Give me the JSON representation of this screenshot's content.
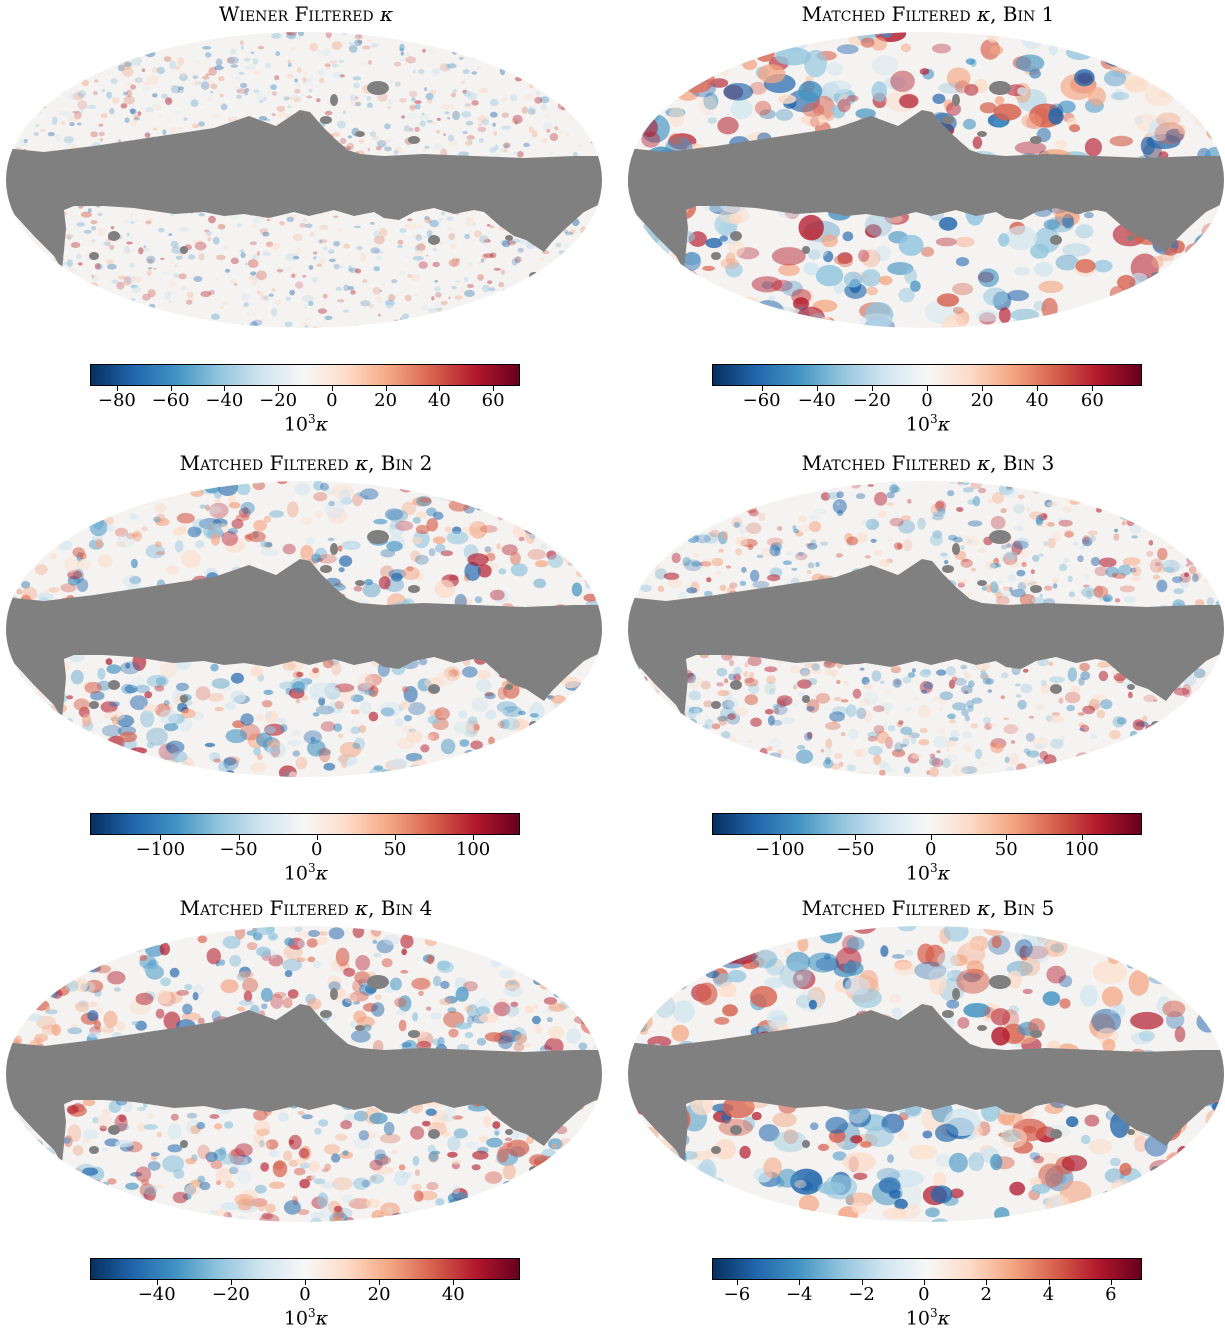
{
  "figure": {
    "background": "#ffffff",
    "mask_color": "#808080",
    "colormap": "RdBu_r",
    "colormap_stops": [
      "#053061",
      "#2166ac",
      "#4393c3",
      "#92c5de",
      "#d1e5f0",
      "#f7f7f7",
      "#fddbc7",
      "#f4a582",
      "#d6604d",
      "#b2182b",
      "#67001f"
    ],
    "projection": "mollweide",
    "panels": [
      {
        "title_prefix": "Wiener Filtered",
        "title_kappa": "κ",
        "title_suffix": "",
        "colorbar": {
          "vmin": -90,
          "vmax": 70,
          "ticks": [
            -80,
            -60,
            -40,
            -20,
            0,
            20,
            40,
            60
          ],
          "tick_labels": [
            "−80",
            "−60",
            "−40",
            "−20",
            "0",
            "20",
            "40",
            "60"
          ],
          "label_base": "10",
          "label_exp": "3",
          "label_var": "κ"
        },
        "field_scale": "fine"
      },
      {
        "title_prefix": "Matched Filtered",
        "title_kappa": "κ",
        "title_suffix": ", Bin 1",
        "colorbar": {
          "vmin": -78,
          "vmax": 78,
          "ticks": [
            -60,
            -40,
            -20,
            0,
            20,
            40,
            60
          ],
          "tick_labels": [
            "−60",
            "−40",
            "−20",
            "0",
            "20",
            "40",
            "60"
          ],
          "label_base": "10",
          "label_exp": "3",
          "label_var": "κ"
        },
        "field_scale": "coarse"
      },
      {
        "title_prefix": "Matched Filtered",
        "title_kappa": "κ",
        "title_suffix": ", Bin 2",
        "colorbar": {
          "vmin": -145,
          "vmax": 130,
          "ticks": [
            -100,
            -50,
            0,
            50,
            100
          ],
          "tick_labels": [
            "−100",
            "−50",
            "0",
            "50",
            "100"
          ],
          "label_base": "10",
          "label_exp": "3",
          "label_var": "κ"
        },
        "field_scale": "medium"
      },
      {
        "title_prefix": "Matched Filtered",
        "title_kappa": "κ",
        "title_suffix": ", Bin 3",
        "colorbar": {
          "vmin": -145,
          "vmax": 140,
          "ticks": [
            -100,
            -50,
            0,
            50,
            100
          ],
          "tick_labels": [
            "−100",
            "−50",
            "0",
            "50",
            "100"
          ],
          "label_base": "10",
          "label_exp": "3",
          "label_var": "κ"
        },
        "field_scale": "medium-fine"
      },
      {
        "title_prefix": "Matched Filtered",
        "title_kappa": "κ",
        "title_suffix": ", Bin 4",
        "colorbar": {
          "vmin": -58,
          "vmax": 58,
          "ticks": [
            -40,
            -20,
            0,
            20,
            40
          ],
          "tick_labels": [
            "−40",
            "−20",
            "0",
            "20",
            "40"
          ],
          "label_base": "10",
          "label_exp": "3",
          "label_var": "κ"
        },
        "field_scale": "medium"
      },
      {
        "title_prefix": "Matched Filtered",
        "title_kappa": "κ",
        "title_suffix": ", Bin 5",
        "colorbar": {
          "vmin": -6.8,
          "vmax": 7,
          "ticks": [
            -6,
            -4,
            -2,
            0,
            2,
            4,
            6
          ],
          "tick_labels": [
            "−6",
            "−4",
            "−2",
            "0",
            "2",
            "4",
            "6"
          ],
          "label_base": "10",
          "label_exp": "3",
          "label_var": "κ"
        },
        "field_scale": "coarse"
      }
    ]
  }
}
